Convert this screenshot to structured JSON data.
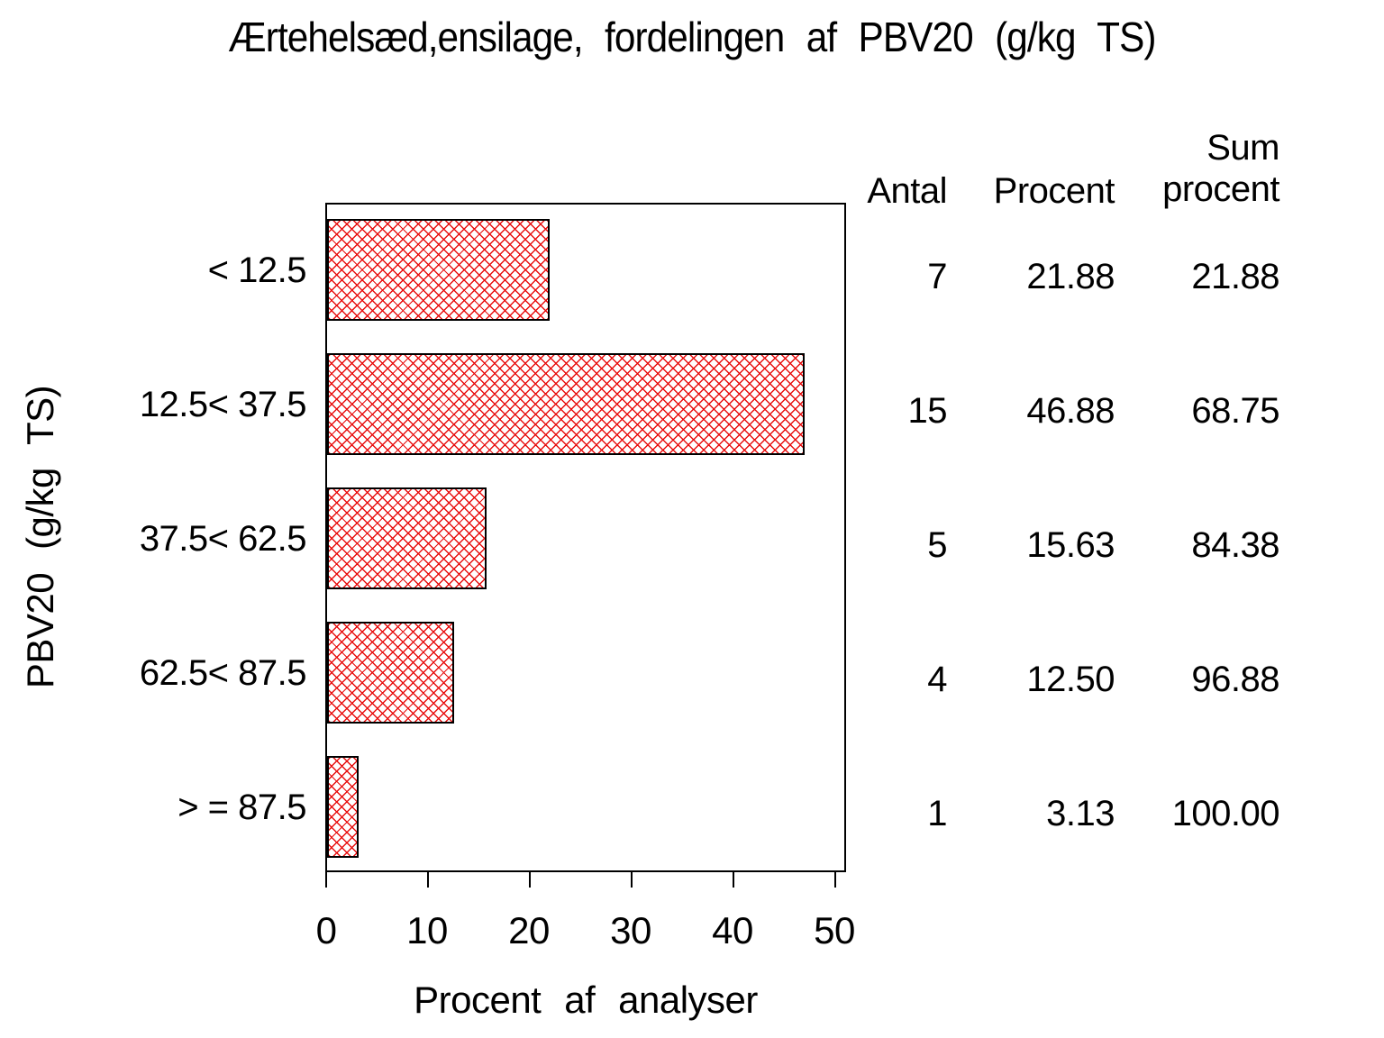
{
  "title": "Ærtehelsæd,ensilage, fordelingen af PBV20 (g/kg TS)",
  "chart_data": {
    "type": "bar",
    "orientation": "horizontal",
    "title": "Ærtehelsæd,ensilage, fordelingen af PBV20 (g/kg TS)",
    "xlabel": "Procent af analyser",
    "ylabel": "PBV20 (g/kg TS)",
    "categories": [
      "< 12.5",
      "12.5< 37.5",
      "37.5< 62.5",
      "62.5< 87.5",
      "> = 87.5"
    ],
    "values": [
      21.88,
      46.88,
      15.63,
      12.5,
      3.13
    ],
    "xlim": [
      0,
      50
    ],
    "xticks": [
      0,
      10,
      20,
      30,
      40,
      50
    ],
    "grid": false,
    "legend": "none",
    "bar_style": "red diagonal crosshatch on white with black outline"
  },
  "table": {
    "headers": {
      "antal": "Antal",
      "procent": "Procent",
      "sum_line1": "Sum",
      "sum_line2": "procent"
    },
    "rows": [
      [
        "7",
        "21.88",
        "21.88"
      ],
      [
        "15",
        "46.88",
        "68.75"
      ],
      [
        "5",
        "15.63",
        "84.38"
      ],
      [
        "4",
        "12.50",
        "96.88"
      ],
      [
        "1",
        "3.13",
        "100.00"
      ]
    ]
  },
  "colors": {
    "hatch_red": "#e80f0f",
    "text": "#000000",
    "background": "#ffffff"
  }
}
